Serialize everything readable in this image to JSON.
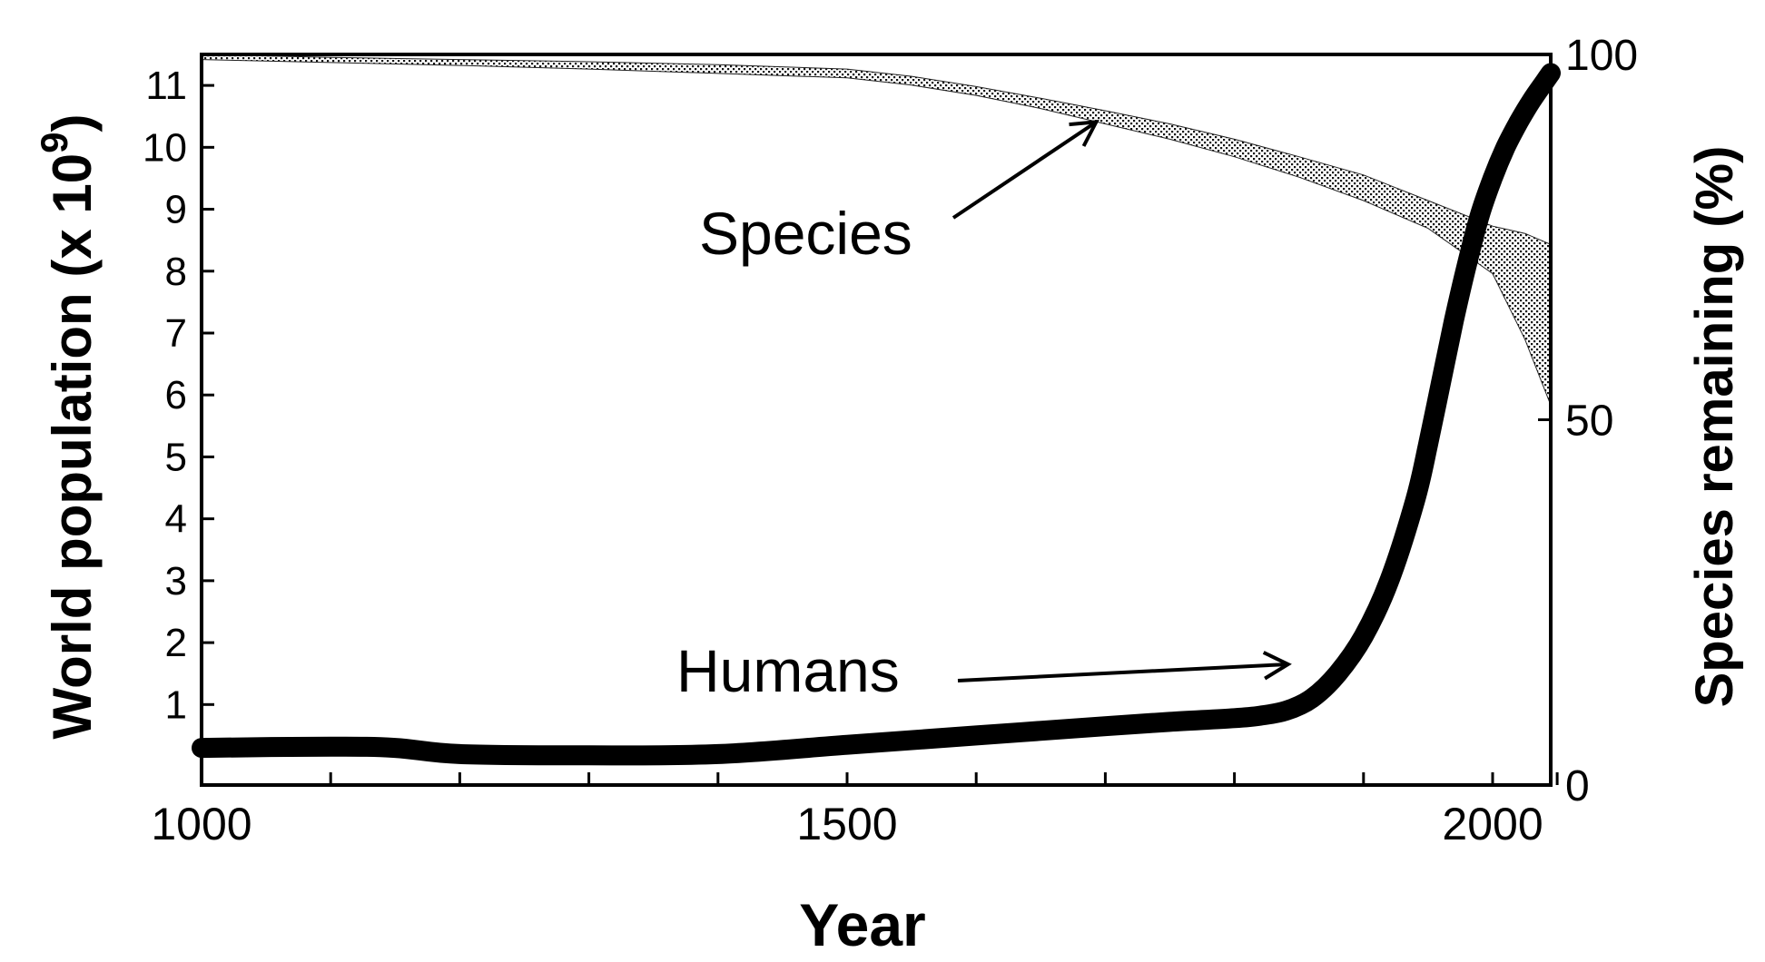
{
  "chart_data": {
    "type": "line",
    "title": "",
    "xlabel": "Year",
    "ylabel_left_main": "World population (x 10",
    "ylabel_left_exp": "9",
    "ylabel_left_close": ")",
    "ylabel_right": "Species remaining (%)",
    "xlim": [
      1000,
      2045
    ],
    "ylim_left": [
      -0.3,
      11.5
    ],
    "ylim_right": [
      0,
      100
    ],
    "x_ticks": [
      1000,
      1100,
      1200,
      1300,
      1400,
      1500,
      1600,
      1700,
      1800,
      1900,
      2000,
      2050
    ],
    "x_tick_labels": [
      "1000",
      "1500",
      "2000"
    ],
    "x_tick_label_values": [
      1000,
      1500,
      2000
    ],
    "y_left_ticks": [
      1,
      2,
      3,
      4,
      5,
      6,
      7,
      8,
      9,
      10,
      11
    ],
    "y_left_tick_labels": [
      "1",
      "2",
      "3",
      "4",
      "5",
      "6",
      "7",
      "8",
      "9",
      "10",
      "11"
    ],
    "y_right_ticks": [
      0,
      50,
      100
    ],
    "y_right_tick_labels": [
      "0",
      "50",
      "100"
    ],
    "grid": false,
    "series": [
      {
        "name": "Humans",
        "axis": "left",
        "style": "thick-line",
        "x": [
          1000,
          1100,
          1150,
          1200,
          1300,
          1400,
          1500,
          1600,
          1700,
          1750,
          1800,
          1820,
          1840,
          1860,
          1880,
          1900,
          1920,
          1940,
          1950,
          1960,
          1970,
          1980,
          1990,
          2000,
          2010,
          2020,
          2030,
          2040,
          2045
        ],
        "y": [
          0.3,
          0.32,
          0.3,
          0.2,
          0.18,
          0.2,
          0.35,
          0.5,
          0.65,
          0.72,
          0.78,
          0.82,
          0.9,
          1.1,
          1.5,
          2.1,
          3.0,
          4.3,
          5.2,
          6.2,
          7.2,
          8.1,
          8.9,
          9.5,
          10.0,
          10.4,
          10.75,
          11.05,
          11.2
        ]
      },
      {
        "name": "Species",
        "axis": "right",
        "style": "stippled-band",
        "x": [
          1000,
          1100,
          1200,
          1300,
          1400,
          1500,
          1550,
          1600,
          1650,
          1700,
          1750,
          1800,
          1850,
          1900,
          1950,
          2000,
          2025,
          2045
        ],
        "upper": [
          100,
          99.6,
          99.3,
          99.0,
          98.6,
          98.0,
          97.0,
          95.6,
          94.0,
          92.3,
          90.5,
          88.4,
          86.0,
          83.5,
          80.0,
          76.5,
          75.5,
          74.0
        ],
        "lower": [
          99.3,
          98.9,
          98.5,
          98.0,
          97.4,
          96.8,
          95.8,
          94.4,
          92.6,
          90.5,
          88.4,
          86.0,
          83.2,
          80.0,
          76.2,
          70.0,
          61.0,
          52.0
        ]
      }
    ],
    "annotations": [
      {
        "text": "Species",
        "target_x": 1700,
        "target_axis": "right",
        "target_y": 92.5
      },
      {
        "text": "Humans",
        "target_x": 1850,
        "target_axis": "left",
        "target_y": 1.65
      }
    ]
  }
}
